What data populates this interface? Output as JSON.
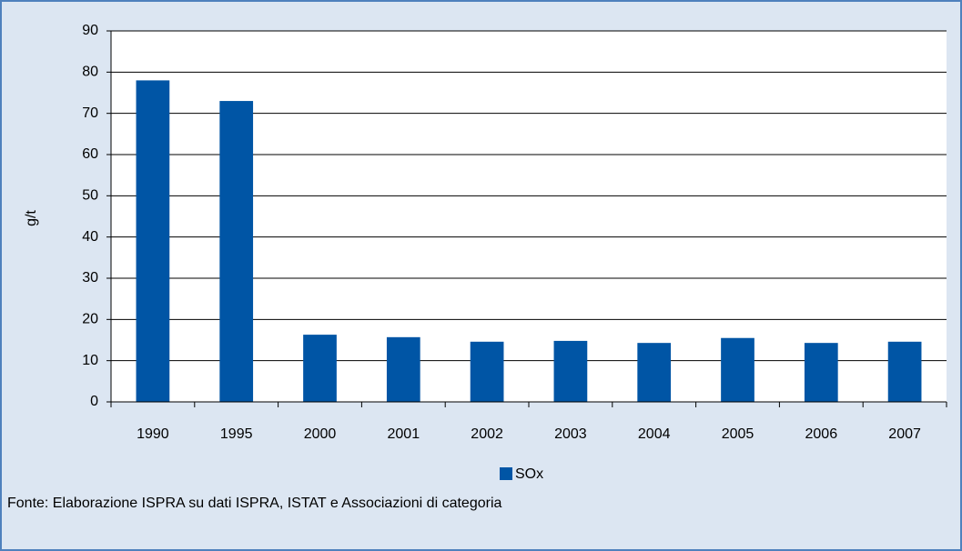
{
  "chart_data": {
    "type": "bar",
    "categories": [
      "1990",
      "1995",
      "2000",
      "2001",
      "2002",
      "2003",
      "2004",
      "2005",
      "2006",
      "2007"
    ],
    "series": [
      {
        "name": "SOx",
        "color": "#0055a5",
        "values": [
          78,
          73,
          16.3,
          15.7,
          14.6,
          14.8,
          14.3,
          15.5,
          14.3,
          14.6
        ]
      }
    ],
    "ylabel": "g/t",
    "ylim": [
      0,
      90
    ],
    "yticks": [
      0,
      10,
      20,
      30,
      40,
      50,
      60,
      70,
      80,
      90
    ],
    "grid": true,
    "legend": "bottom",
    "source": "Fonte: Elaborazione ISPRA su dati ISPRA, ISTAT e Associazioni di categoria"
  }
}
